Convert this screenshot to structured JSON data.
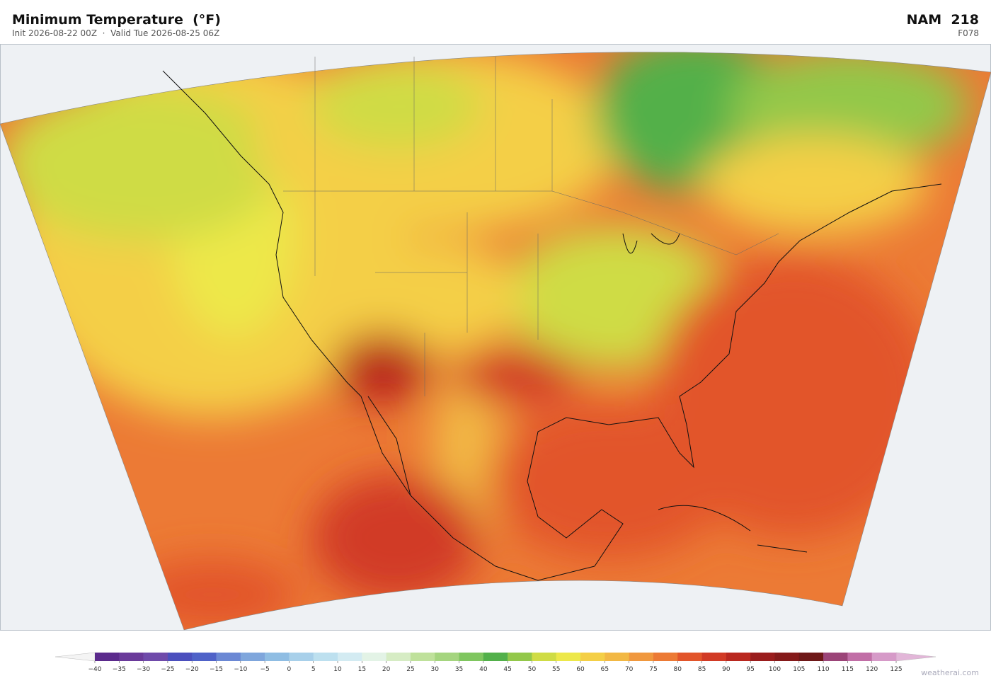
{
  "header": {
    "title": "Minimum Temperature  (°F)",
    "subtitle": "Init 2026-08-22 00Z  ·  Valid Tue 2026-08-25 06Z",
    "model": "NAM  218",
    "forecast_hour": "F078"
  },
  "colorbar": {
    "ticks": [
      {
        "value": -40,
        "label": "−40"
      },
      {
        "value": -35,
        "label": "−35"
      },
      {
        "value": -30,
        "label": "−30"
      },
      {
        "value": -25,
        "label": "−25"
      },
      {
        "value": -20,
        "label": "−20"
      },
      {
        "value": -15,
        "label": "−15"
      },
      {
        "value": -10,
        "label": "−10"
      },
      {
        "value": -5,
        "label": "−5"
      },
      0,
      5,
      10,
      15,
      20,
      25,
      30,
      35,
      40,
      45,
      50,
      55,
      60,
      65,
      70,
      75,
      80,
      85,
      90,
      95,
      100,
      105,
      110,
      115,
      120,
      125
    ],
    "colors": [
      "#5b2a8c",
      "#6a3a9a",
      "#6f4aaa",
      "#4b4fbd",
      "#4f62c8",
      "#6b88d4",
      "#7fa6dc",
      "#8fbde3",
      "#a8d0ea",
      "#bde0ef",
      "#d3ebf2",
      "#e3f3e6",
      "#d6ecc4",
      "#bfe19b",
      "#a5d57f",
      "#7fc65f",
      "#52b04a",
      "#93c84a",
      "#cfdc45",
      "#ede84a",
      "#f4cf46",
      "#f2b844",
      "#f0983e",
      "#ec7a35",
      "#e2552a",
      "#d13a25",
      "#b9281f",
      "#9a1d1d",
      "#851a1a",
      "#6e1818",
      "#9b4478",
      "#c16ea6",
      "#d69ac8"
    ],
    "extend_colors": [
      "#f4f4f4",
      "#e2b6d8"
    ]
  },
  "watermark": "weatherai.com"
}
